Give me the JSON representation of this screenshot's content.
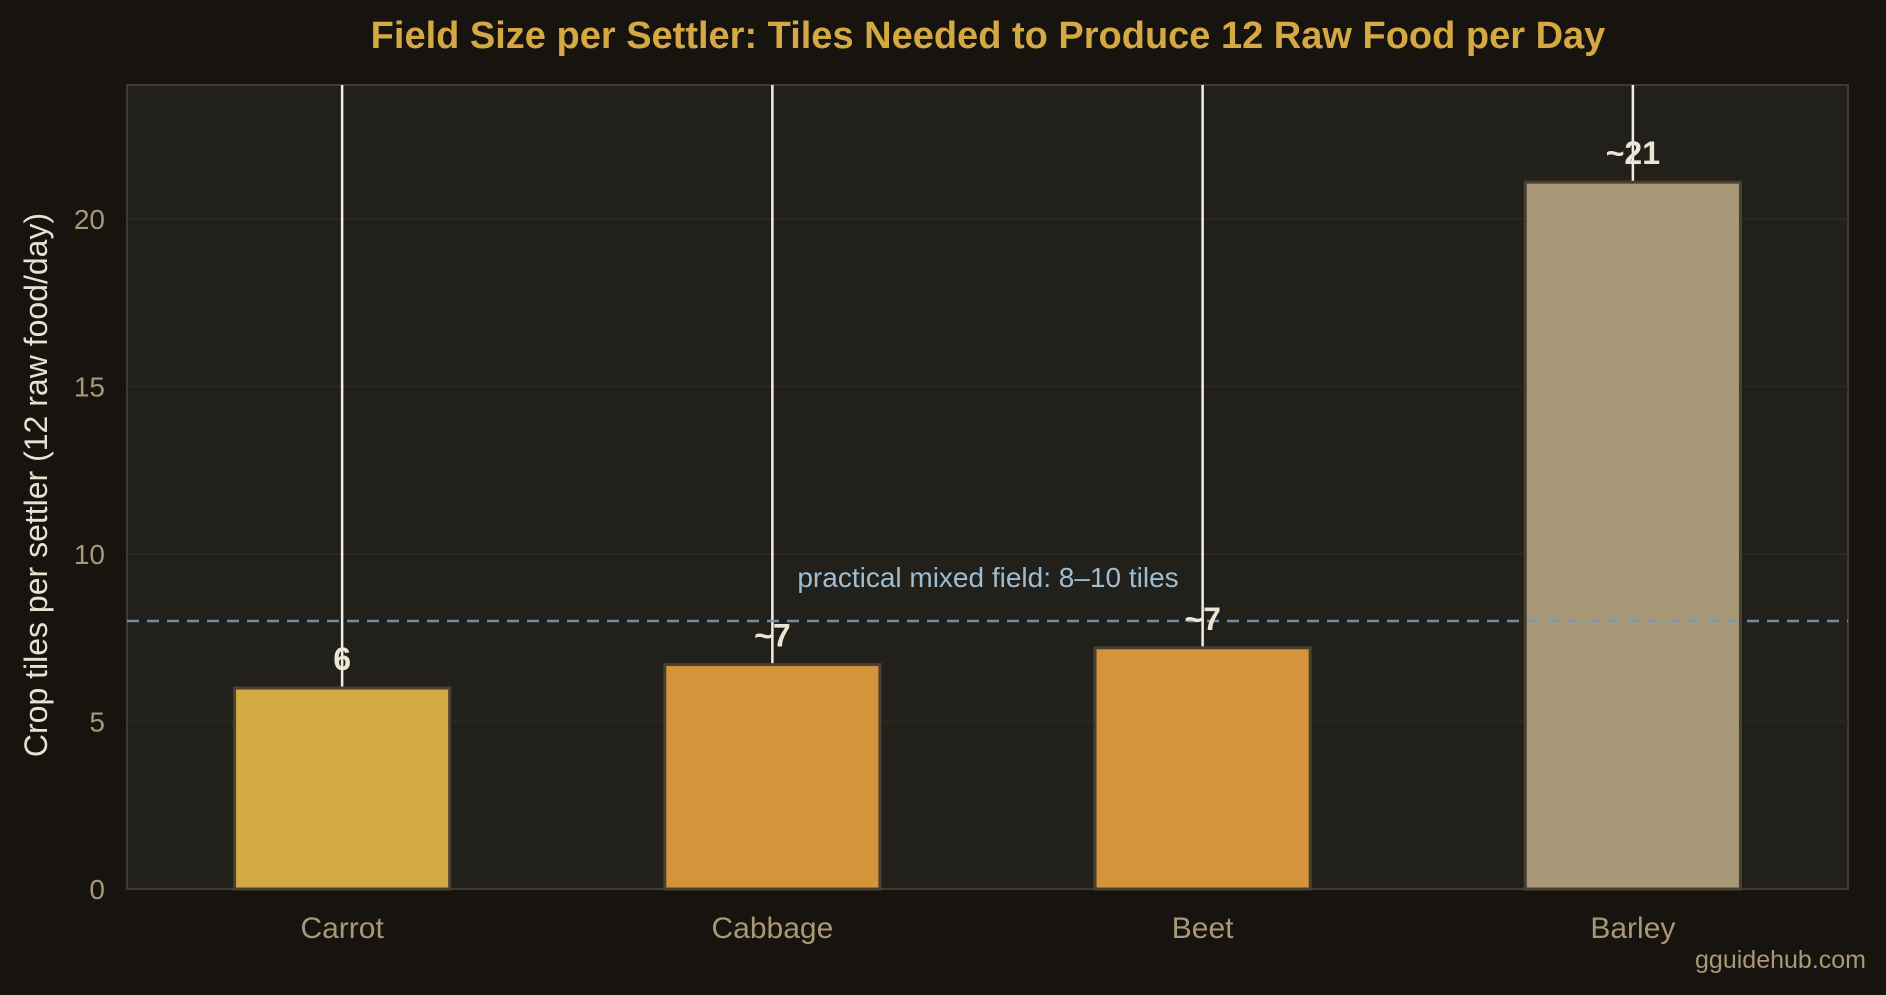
{
  "chart_data": {
    "type": "bar",
    "title": "Field Size per Settler: Tiles Needed to Produce 12 Raw Food per Day",
    "xlabel": "",
    "ylabel": "Crop tiles per settler (12 raw food/day)",
    "categories": [
      "Carrot",
      "Cabbage",
      "Beet",
      "Barley"
    ],
    "values": [
      6,
      6.7,
      7.2,
      21.1
    ],
    "value_labels": [
      "6",
      "~7",
      "~7",
      "~21"
    ],
    "bar_colors": [
      "#d4a843",
      "#d4943b",
      "#d4943b",
      "#a89878"
    ],
    "ylim": [
      0,
      24
    ],
    "yticks": [
      0,
      5,
      10,
      15,
      20
    ],
    "ytick_labels": [
      "0",
      "5",
      "10",
      "15",
      "20"
    ],
    "grid": true,
    "reference_line": {
      "value": 8,
      "label": "practical mixed field: 8–10 tiles",
      "color": "#7a9bb0"
    },
    "watermark": "gguidehub.com"
  }
}
